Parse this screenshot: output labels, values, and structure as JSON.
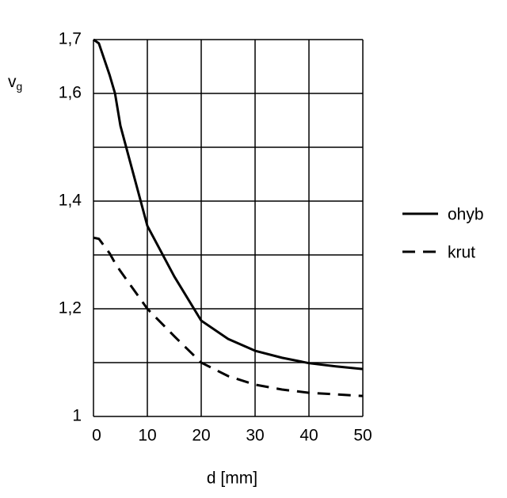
{
  "chart_data": {
    "type": "line",
    "xlabel": "d [mm]",
    "ylabel": {
      "text": "v",
      "subscript": "g"
    },
    "xlim": [
      0,
      50
    ],
    "xticks": [
      0,
      10,
      20,
      30,
      40,
      50
    ],
    "ylim": [
      1,
      1.7
    ],
    "yticks": [
      {
        "value": 1.7,
        "label": "1,7"
      },
      {
        "value": 1.6,
        "label": "1,6"
      },
      {
        "value": 1.4,
        "label": "1,4"
      },
      {
        "value": 1.2,
        "label": "1,2"
      },
      1
    ],
    "ygrid": [
      1,
      1.1,
      1.2,
      1.3,
      1.4,
      1.5,
      1.6,
      1.7
    ],
    "grid": true,
    "legend": "right",
    "x": [
      0,
      1,
      3,
      4,
      5,
      10,
      15,
      20,
      25,
      30,
      35,
      40,
      45,
      50
    ],
    "series": [
      {
        "name": "ohyb",
        "color": "#000000",
        "dash": "solid",
        "values": [
          1.7,
          1.693,
          1.634,
          1.6,
          1.54,
          1.354,
          1.26,
          1.178,
          1.144,
          1.122,
          1.109,
          1.099,
          1.093,
          1.088
        ]
      },
      {
        "name": "krut",
        "color": "#000000",
        "dash": "dashed",
        "values": [
          1.332,
          1.33,
          1.303,
          1.285,
          1.27,
          1.2,
          1.149,
          1.1,
          1.075,
          1.059,
          1.05,
          1.044,
          1.041,
          1.038
        ]
      }
    ]
  }
}
